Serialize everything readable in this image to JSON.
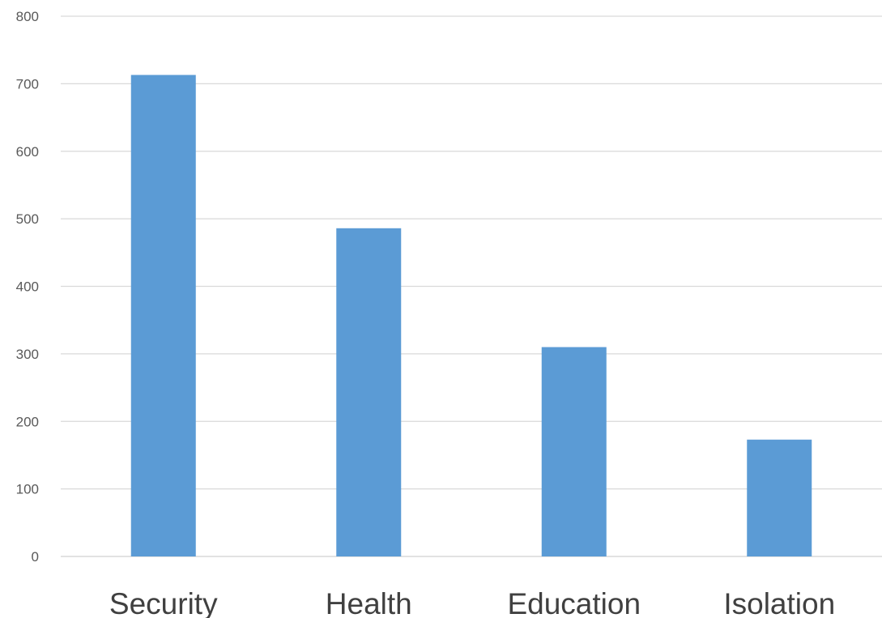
{
  "chart_data": {
    "type": "bar",
    "title": "",
    "xlabel": "",
    "ylabel": "",
    "categories": [
      "Security",
      "Health",
      "Education",
      "Isolation"
    ],
    "values": [
      713,
      486,
      310,
      173
    ],
    "ylim": [
      0,
      800
    ],
    "yticks": [
      0,
      100,
      200,
      300,
      400,
      500,
      600,
      700,
      800
    ],
    "grid": true,
    "legend": "none",
    "bar_color": "#5b9bd5"
  }
}
